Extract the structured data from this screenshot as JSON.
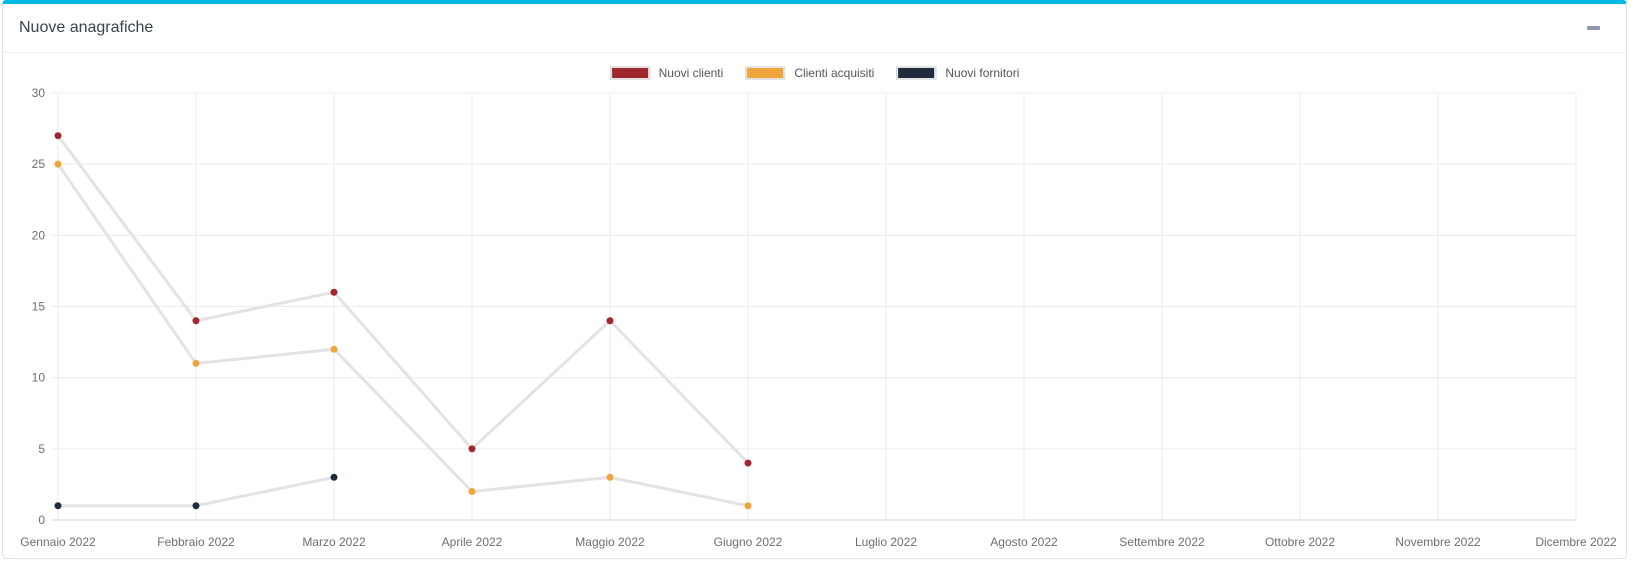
{
  "panel": {
    "title": "Nuove anagrafiche",
    "accent_color": "#00b9e4",
    "collapse_icon": "minus-icon"
  },
  "chart_data": {
    "type": "line",
    "title": "Nuove anagrafiche",
    "categories": [
      "Gennaio 2022",
      "Febbraio 2022",
      "Marzo 2022",
      "Aprile 2022",
      "Maggio 2022",
      "Giugno 2022",
      "Luglio 2022",
      "Agosto 2022",
      "Settembre 2022",
      "Ottobre 2022",
      "Novembre 2022",
      "Dicembre 2022"
    ],
    "series": [
      {
        "name": "Nuovi clienti",
        "color": "#a1272f",
        "values": [
          27,
          14,
          16,
          5,
          14,
          4,
          null,
          null,
          null,
          null,
          null,
          null
        ]
      },
      {
        "name": "Clienti acquisiti",
        "color": "#f0a43c",
        "values": [
          25,
          11,
          12,
          2,
          3,
          1,
          null,
          null,
          null,
          null,
          null,
          null
        ]
      },
      {
        "name": "Nuovi fornitori",
        "color": "#202c3e",
        "values": [
          1,
          1,
          3,
          null,
          null,
          null,
          null,
          null,
          null,
          null,
          null,
          null
        ]
      }
    ],
    "line_color": "#e3e3e3",
    "grid_color": "#ececec",
    "zero_line_color": "#d9d9d9",
    "ylim": [
      0,
      30
    ],
    "yticks": [
      0,
      5,
      10,
      15,
      20,
      25,
      30
    ],
    "grid": true,
    "legend_position": "top-center"
  }
}
